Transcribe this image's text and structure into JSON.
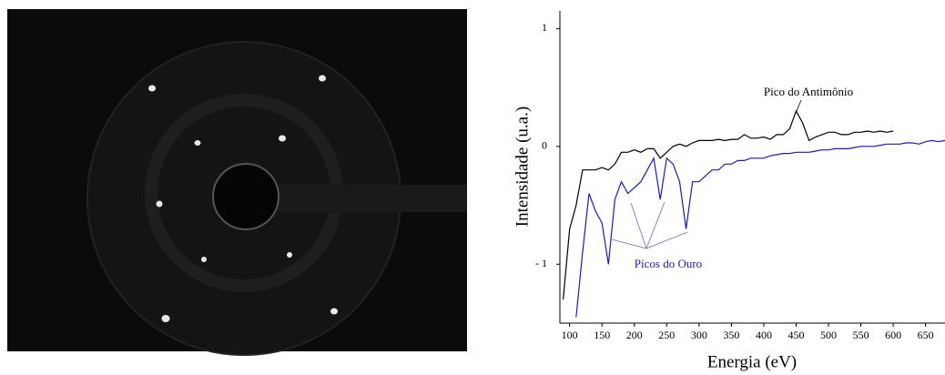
{
  "chart_data": {
    "type": "line",
    "y_label": "Intensidade (u.a.)",
    "x_label": "Energia (eV)",
    "annotations": [
      {
        "text": "Pico do Antimônio",
        "color": "#000000"
      },
      {
        "text": "Picos do Ouro",
        "color": "#1a1acc"
      }
    ],
    "x": [
      90,
      100,
      110,
      120,
      130,
      140,
      150,
      160,
      170,
      180,
      190,
      200,
      210,
      220,
      230,
      240,
      250,
      260,
      270,
      280,
      290,
      300,
      310,
      320,
      330,
      340,
      350,
      360,
      370,
      380,
      390,
      400,
      410,
      420,
      430,
      440,
      450,
      460,
      470,
      480,
      490,
      500,
      510,
      520,
      530,
      540,
      550,
      560,
      570,
      580,
      590,
      600,
      610,
      620,
      630,
      640,
      650,
      660,
      670,
      680
    ],
    "series": [
      {
        "color": "#000000",
        "values": [
          -1.3,
          -0.7,
          -0.5,
          -0.2,
          -0.2,
          -0.2,
          -0.18,
          -0.2,
          -0.15,
          -0.05,
          -0.05,
          -0.03,
          -0.05,
          -0.02,
          -0.02,
          -0.1,
          -0.05,
          0,
          0.02,
          0,
          0.03,
          0.05,
          0.05,
          0.05,
          0.06,
          0.05,
          0.06,
          0.06,
          0.1,
          0.07,
          0.07,
          0.08,
          0.06,
          0.1,
          0.1,
          0.15,
          0.3,
          0.2,
          0.05,
          0.08,
          0.1,
          0.12,
          0.12,
          0.1,
          0.1,
          0.12,
          0.12,
          0.13,
          0.12,
          0.13,
          0.12,
          0.13,
          null,
          null,
          null,
          null,
          null,
          null,
          null,
          null
        ]
      },
      {
        "color": "#1a1acc",
        "values": [
          null,
          null,
          -1.45,
          -0.9,
          -0.4,
          -0.55,
          -0.65,
          -1.0,
          -0.45,
          -0.3,
          -0.4,
          -0.35,
          -0.3,
          -0.2,
          -0.1,
          -0.45,
          -0.1,
          -0.15,
          -0.3,
          -0.7,
          -0.3,
          -0.3,
          -0.25,
          -0.2,
          -0.2,
          -0.15,
          -0.15,
          -0.12,
          -0.12,
          -0.1,
          -0.1,
          -0.1,
          -0.08,
          -0.07,
          -0.06,
          -0.06,
          -0.05,
          -0.05,
          -0.05,
          -0.04,
          -0.03,
          -0.03,
          -0.02,
          -0.02,
          -0.02,
          -0.01,
          0,
          0,
          0,
          0.01,
          0.02,
          0.02,
          0.02,
          0.03,
          0.03,
          0.02,
          0.04,
          0.05,
          0.04,
          0.05
        ]
      }
    ],
    "xlim": [
      85,
      680
    ],
    "xticks": [
      100,
      150,
      200,
      250,
      300,
      350,
      400,
      450,
      500,
      550,
      600,
      650
    ],
    "ylim": [
      -1.5,
      1.15
    ],
    "yticks": [
      1,
      0,
      {
        "value": -1,
        "label": "- 1"
      }
    ]
  }
}
